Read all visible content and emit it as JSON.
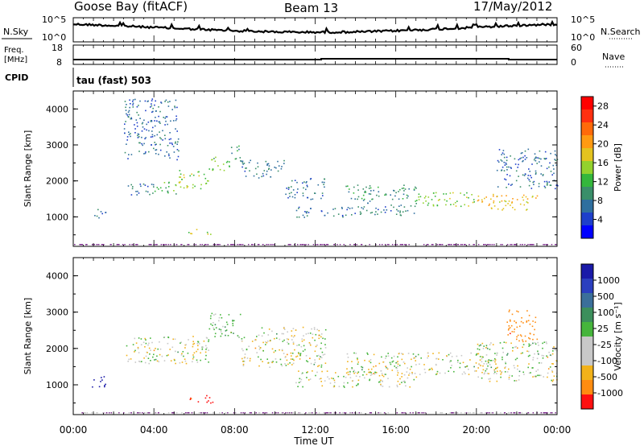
{
  "header": {
    "station": "Goose Bay (fitACF)",
    "beam": "Beam 13",
    "date": "17/May/2012"
  },
  "strip_noise": {
    "left_label": "N.Sky",
    "right_label": "N.Search",
    "right_legend_style": "dotted",
    "left_ticks": [
      "10^5",
      "10^0"
    ],
    "right_ticks": [
      "10^5",
      "10^0"
    ]
  },
  "strip_freq": {
    "left_label": [
      "Freq.",
      "[MHz]"
    ],
    "right_label": "Nave",
    "right_legend_style": "dotted",
    "left_ticks": [
      "18",
      "8"
    ],
    "right_ticks": [
      "60",
      "0"
    ]
  },
  "strip_cpid": {
    "left_label": "CPID",
    "program": "tau (fast) 503"
  },
  "chart_data": [
    {
      "type": "heatmap",
      "parameter": "Power",
      "ylabel": "Slant Range [km]",
      "xlabel": "Time UT",
      "ylim": [
        180,
        4500
      ],
      "yticks": [
        "1000",
        "2000",
        "3000",
        "4000"
      ],
      "colorbar": {
        "title": "Power [dB]",
        "ticks": [
          "4",
          "8",
          "12",
          "16",
          "20",
          "24",
          "28"
        ],
        "range": [
          0,
          30
        ],
        "colors": [
          "#0000ff",
          "#1e3fcb",
          "#2f6f9f",
          "#3a8f6a",
          "#34b73c",
          "#93d22d",
          "#e3c31f",
          "#ff9a12",
          "#ff6a0a",
          "#ff3010",
          "#ff0000"
        ]
      },
      "echo_regions": [
        {
          "t": [
            0.9,
            1.6
          ],
          "r": [
            950,
            1250
          ],
          "level": 5
        },
        {
          "t": [
            2.5,
            4.0
          ],
          "r": [
            1600,
            1950
          ],
          "level": 7
        },
        {
          "t": [
            4.0,
            5.2
          ],
          "r": [
            1650,
            2000
          ],
          "level": 12
        },
        {
          "t": [
            5.2,
            6.7
          ],
          "r": [
            1800,
            2350
          ],
          "level": 15
        },
        {
          "t": [
            6.7,
            7.8
          ],
          "r": [
            2300,
            2700
          ],
          "level": 13
        },
        {
          "t": [
            7.8,
            8.3
          ],
          "r": [
            2500,
            3000
          ],
          "level": 8
        },
        {
          "t": [
            8.3,
            10.5
          ],
          "r": [
            2100,
            2600
          ],
          "level": 7
        },
        {
          "t": [
            10.5,
            12.5
          ],
          "r": [
            1500,
            2100
          ],
          "level": 6
        },
        {
          "t": [
            11.0,
            14.0
          ],
          "r": [
            1000,
            1300
          ],
          "level": 6
        },
        {
          "t": [
            14.0,
            17.0
          ],
          "r": [
            1050,
            1400
          ],
          "level": 7
        },
        {
          "t": [
            13.5,
            17.0
          ],
          "r": [
            1450,
            1900
          ],
          "level": 9
        },
        {
          "t": [
            17.0,
            20.0
          ],
          "r": [
            1300,
            1700
          ],
          "level": 14
        },
        {
          "t": [
            20.0,
            23.0
          ],
          "r": [
            1200,
            1650
          ],
          "level": 19
        },
        {
          "t": [
            21.0,
            24.0
          ],
          "r": [
            1800,
            2900
          ],
          "level": 6
        },
        {
          "t": [
            5.7,
            6.8
          ],
          "r": [
            530,
            700
          ],
          "level": 14
        },
        {
          "t": [
            2.5,
            5.2
          ],
          "r": [
            2600,
            4300
          ],
          "level": 5
        }
      ]
    },
    {
      "type": "heatmap",
      "parameter": "Velocity",
      "ylabel": "Slant Range [km]",
      "xlabel": "Time UT",
      "ylim": [
        180,
        4500
      ],
      "yticks": [
        "1000",
        "2000",
        "3000",
        "4000"
      ],
      "colorbar": {
        "title": "Velocity [m s⁻¹]",
        "ticks": [
          "1000",
          "500",
          "100",
          "25",
          "-25",
          "-100",
          "-500",
          "-1000"
        ],
        "colors": [
          "#1a1aa8",
          "#2b3fbf",
          "#3b6f9a",
          "#3c8f5c",
          "#46b53c",
          "#8fd43a",
          "#c8c8c8",
          "#c8c8c8",
          "#f2b21a",
          "#ff8c10",
          "#ff5a10",
          "#ff1010"
        ]
      },
      "echo_regions": [
        {
          "t": [
            0.9,
            1.6
          ],
          "r": [
            900,
            1250
          ],
          "v": 800
        },
        {
          "t": [
            2.5,
            6.7
          ],
          "r": [
            1600,
            2350
          ],
          "v": 0
        },
        {
          "t": [
            6.7,
            8.3
          ],
          "r": [
            2300,
            3000
          ],
          "v": 60
        },
        {
          "t": [
            8.3,
            12.5
          ],
          "r": [
            1500,
            2600
          ],
          "v": 0
        },
        {
          "t": [
            11.0,
            17.0
          ],
          "r": [
            950,
            1400
          ],
          "v": 0
        },
        {
          "t": [
            13.5,
            21.0
          ],
          "r": [
            1300,
            1900
          ],
          "v": 0
        },
        {
          "t": [
            20.0,
            24.0
          ],
          "r": [
            1100,
            2200
          ],
          "v": 0
        },
        {
          "t": [
            21.5,
            23.0
          ],
          "r": [
            2200,
            3100
          ],
          "v": -300
        },
        {
          "t": [
            5.7,
            7.0
          ],
          "r": [
            500,
            720
          ],
          "v": -600
        }
      ]
    }
  ],
  "time_axis": {
    "xlabel": "Time UT",
    "ticks": [
      "00:00",
      "04:00",
      "08:00",
      "12:00",
      "16:00",
      "20:00",
      "00:00"
    ]
  }
}
